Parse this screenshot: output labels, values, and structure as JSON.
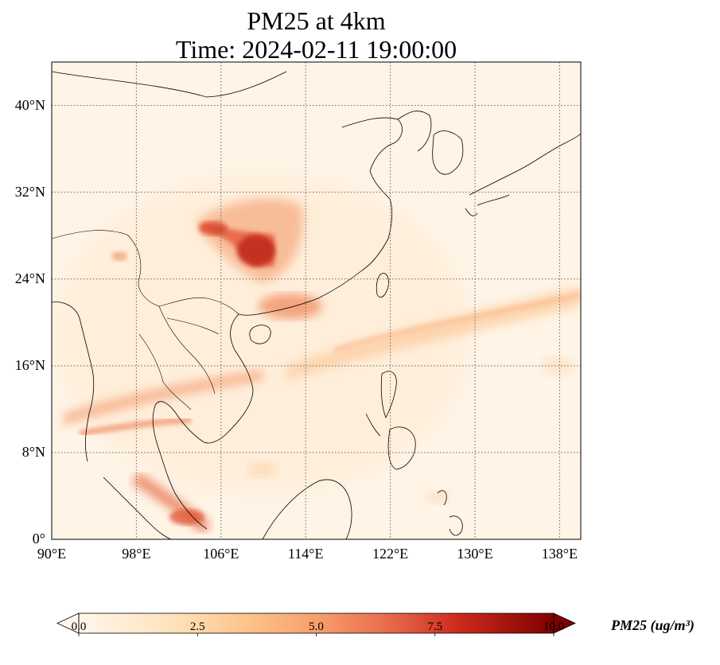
{
  "title": {
    "line1": "PM25 at 4km",
    "line2": "Time: 2024-02-11 19:00:00"
  },
  "map": {
    "lon_range": [
      90,
      140
    ],
    "lat_range": [
      0,
      44
    ],
    "lon_ticks": [
      {
        "value": 90,
        "label": "90°E"
      },
      {
        "value": 98,
        "label": "98°E"
      },
      {
        "value": 106,
        "label": "106°E"
      },
      {
        "value": 114,
        "label": "114°E"
      },
      {
        "value": 122,
        "label": "122°E"
      },
      {
        "value": 130,
        "label": "130°E"
      },
      {
        "value": 138,
        "label": "138°E"
      }
    ],
    "lat_ticks": [
      {
        "value": 0,
        "label": "0°"
      },
      {
        "value": 8,
        "label": "8°N"
      },
      {
        "value": 16,
        "label": "16°N"
      },
      {
        "value": 24,
        "label": "24°N"
      },
      {
        "value": 32,
        "label": "32°N"
      },
      {
        "value": 40,
        "label": "40°N"
      }
    ],
    "gridlines": true,
    "colormap": "OrRd",
    "features": [
      {
        "region": "Sichuan Basin / Chongqing",
        "value": 8.5
      },
      {
        "region": "Pearl River Delta",
        "value": 5.0
      },
      {
        "region": "Gulf of Thailand band",
        "value": 3.5
      },
      {
        "region": "Strait of Malacca",
        "value": 5.0
      },
      {
        "region": "Western Pacific plume band",
        "value": 2.5
      }
    ]
  },
  "colorbar": {
    "label": "PM25 (ug/m³)",
    "min": 0.0,
    "max": 10.0,
    "ticks": [
      {
        "value": 0.0,
        "label": "0.0"
      },
      {
        "value": 2.5,
        "label": "2.5"
      },
      {
        "value": 5.0,
        "label": "5.0"
      },
      {
        "value": 7.5,
        "label": "7.5"
      },
      {
        "value": 10.0,
        "label": "10.0"
      }
    ],
    "extend": "both"
  }
}
